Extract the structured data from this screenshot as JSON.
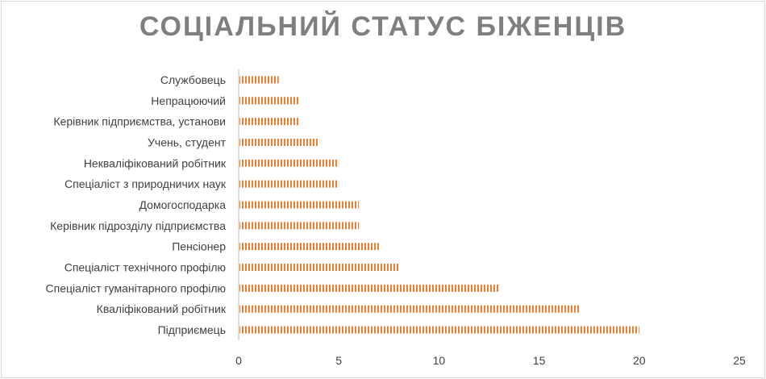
{
  "chart_data": {
    "type": "bar",
    "orientation": "horizontal",
    "title": "СОЦІАЛЬНИЙ СТАТУС БІЖЕНЦІВ",
    "categories": [
      "Службовець",
      "Непрацюючий",
      "Керівник підприємства, установи",
      "Учень, студент",
      "Некваліфікований робітник",
      "Спеціаліст з природничих наук",
      "Домогосподарка",
      "Керівник підрозділу підприємства",
      "Пенсіонер",
      "Спеціаліст технічного профілю",
      "Спеціаліст гуманітарного профілю",
      "Кваліфікований робітник",
      "Підприємець"
    ],
    "values": [
      2,
      3,
      3,
      4,
      5,
      5,
      6,
      6,
      7,
      8,
      13,
      17,
      20
    ],
    "xlim": [
      0,
      25
    ],
    "xticks": [
      0,
      5,
      10,
      15,
      20,
      25
    ],
    "grid": false,
    "legend": "none",
    "bar_color": "#ed7d31",
    "bar_pattern": "vertical-stripes"
  }
}
